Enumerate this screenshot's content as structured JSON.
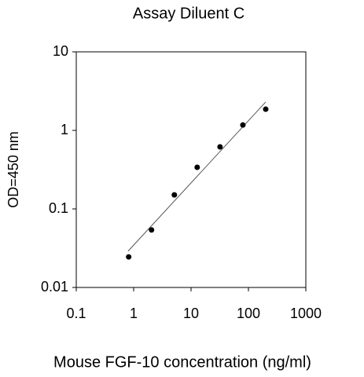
{
  "chart_data": {
    "type": "scatter",
    "title": "Assay Diluent C",
    "x_label": "Mouse FGF-10 concentration (ng/ml)",
    "y_label": "OD=450 nm",
    "x": [
      0.8192,
      2.048,
      5.12,
      12.8,
      32,
      80,
      200
    ],
    "series": [
      {
        "color": "#000000",
        "values": [
          0.0245,
          0.054,
          0.151,
          0.339,
          0.617,
          1.17,
          1.86
        ]
      }
    ],
    "trendline": {
      "x": [
        0.8,
        200
      ],
      "values": [
        0.029,
        2.3
      ],
      "color": "#555555"
    },
    "xlim": [
      0.1,
      1000
    ],
    "ylim": [
      0.01,
      10
    ],
    "xticks": [
      0.1,
      1,
      10,
      100,
      1000
    ],
    "yticks": [
      0.01,
      0.1,
      1,
      10
    ],
    "xlog": true,
    "ylog": true,
    "grid": false
  }
}
